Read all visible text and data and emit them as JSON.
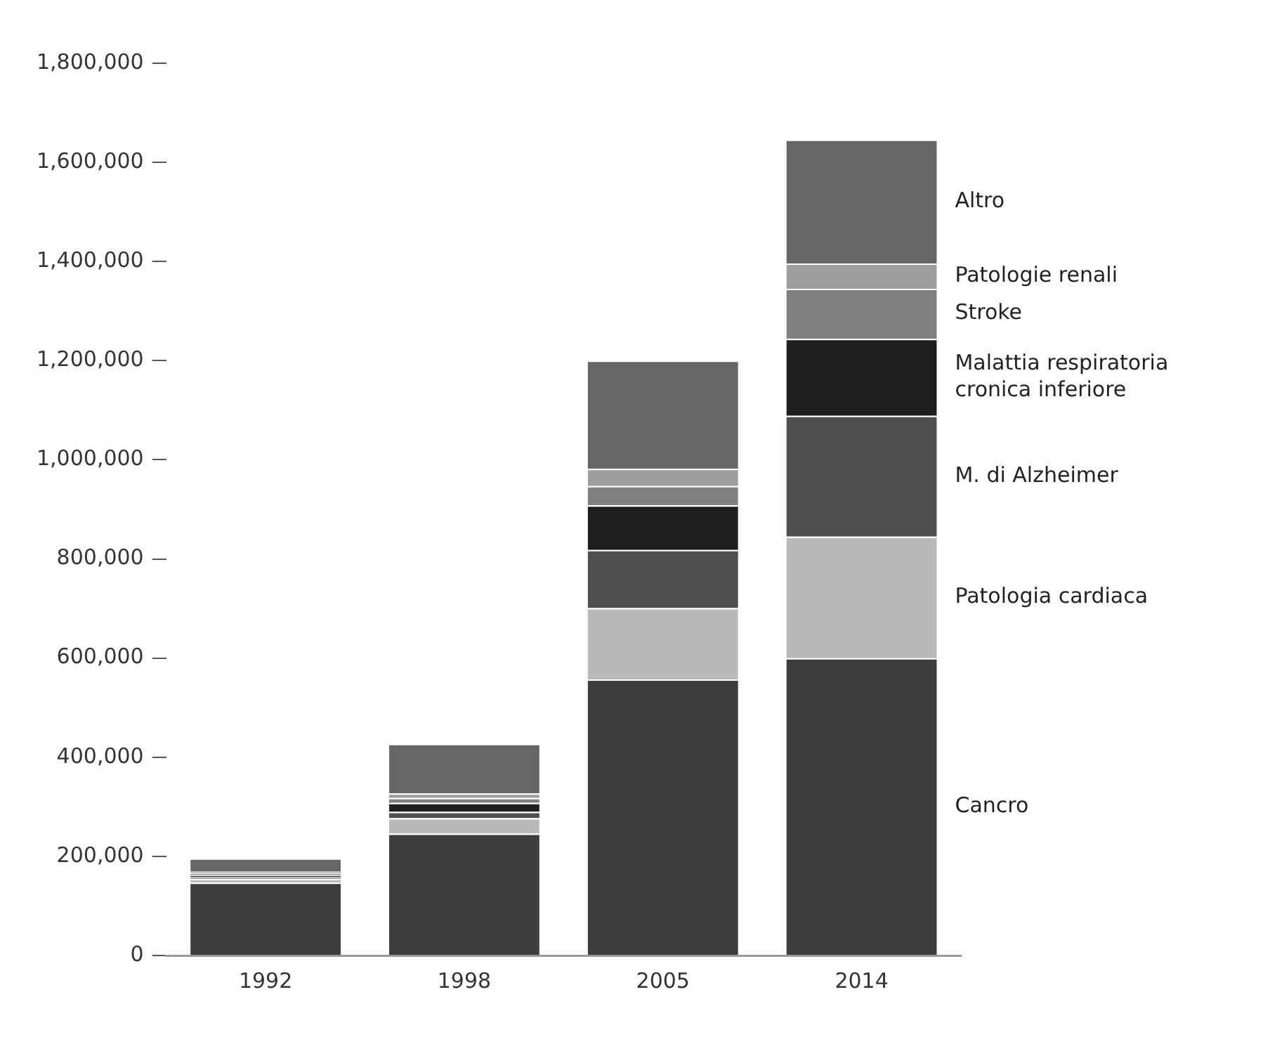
{
  "chart_data": {
    "type": "bar",
    "stacked": true,
    "categories": [
      "1992",
      "1998",
      "2005",
      "2014"
    ],
    "series": [
      {
        "name": "Cancro",
        "color": "#3d3d3d",
        "values": [
          147000,
          246000,
          557000,
          600000
        ]
      },
      {
        "name": "Patologia cardiaca",
        "color": "#bababa",
        "values": [
          8000,
          31000,
          144000,
          245000
        ]
      },
      {
        "name": "M. di Alzheimer",
        "color": "#4f4f4f",
        "values": [
          3000,
          13000,
          117000,
          244000
        ]
      },
      {
        "name": "Malattia respiratoria cronica inferiore",
        "color": "#1e1e1e",
        "values": [
          4000,
          18000,
          90000,
          155000
        ]
      },
      {
        "name": "Stroke",
        "color": "#7f7f7f",
        "values": [
          4000,
          10000,
          39000,
          101000
        ]
      },
      {
        "name": "Patologie renali",
        "color": "#9e9e9e",
        "values": [
          3000,
          9000,
          35000,
          51000
        ]
      },
      {
        "name": "Altro",
        "color": "#666666",
        "values": [
          27000,
          100000,
          218000,
          250000
        ]
      }
    ],
    "ylim": [
      0,
      1800000
    ],
    "yticks": [
      0,
      {
        "value": 200000,
        "label": "200,000"
      },
      {
        "value": 400000,
        "label": "400,000"
      },
      {
        "value": 600000,
        "label": "600,000"
      },
      {
        "value": 800000,
        "label": "800,000"
      },
      {
        "value": 1000000,
        "label": "1,000,000"
      },
      {
        "value": 1200000,
        "label": "1,200,000"
      },
      {
        "value": 1400000,
        "label": "1,400,000"
      },
      {
        "value": 1600000,
        "label": "1,600,000"
      },
      {
        "value": 1800000,
        "label": "1,800,000"
      }
    ],
    "grid": false,
    "legend": false
  }
}
